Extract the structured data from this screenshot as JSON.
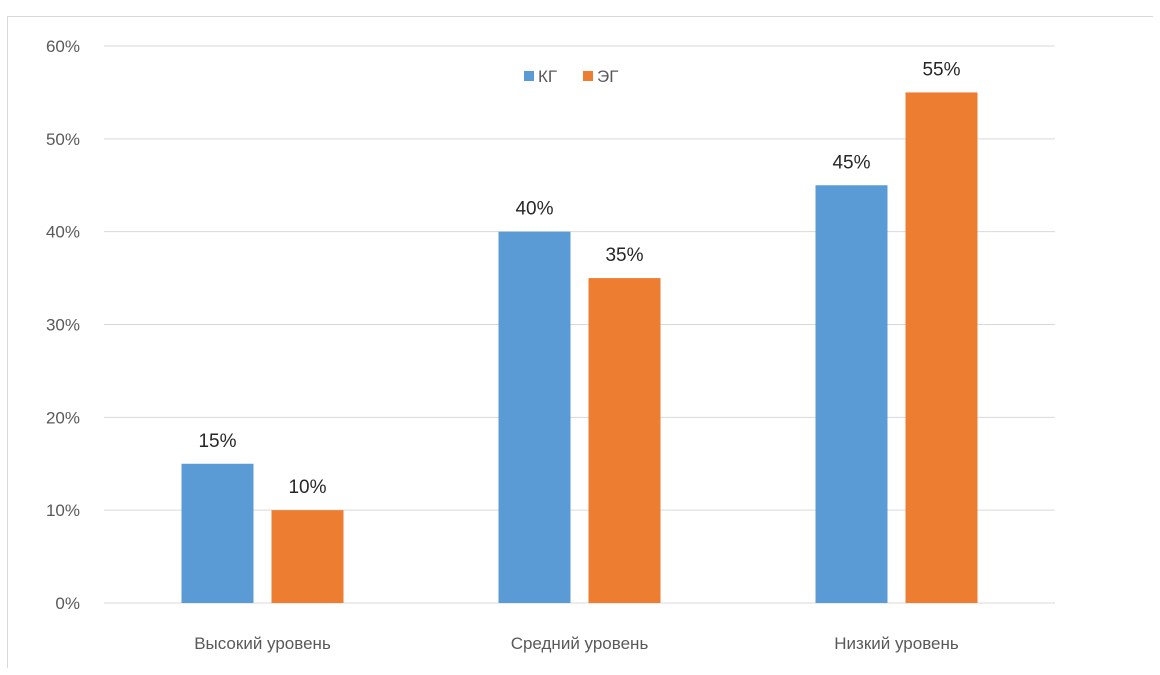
{
  "chart_data": {
    "type": "bar",
    "categories": [
      "Высокий уровень",
      "Средний уровень",
      "Низкий уровень"
    ],
    "series": [
      {
        "name": "КГ",
        "values": [
          15,
          40,
          45
        ],
        "labels": [
          "15%",
          "40%",
          "45%"
        ],
        "color": "#5B9BD5"
      },
      {
        "name": "ЭГ",
        "values": [
          10,
          35,
          55
        ],
        "labels": [
          "10%",
          "35%",
          "55%"
        ],
        "color": "#ED7D31"
      }
    ],
    "ylim": [
      0,
      60
    ],
    "yticks": [
      "0%",
      "10%",
      "20%",
      "30%",
      "40%",
      "50%",
      "60%"
    ],
    "ytick_values": [
      0,
      10,
      20,
      30,
      40,
      50,
      60
    ],
    "grid": true,
    "gridColor": "#d9d9d9",
    "legend": "top-center"
  }
}
